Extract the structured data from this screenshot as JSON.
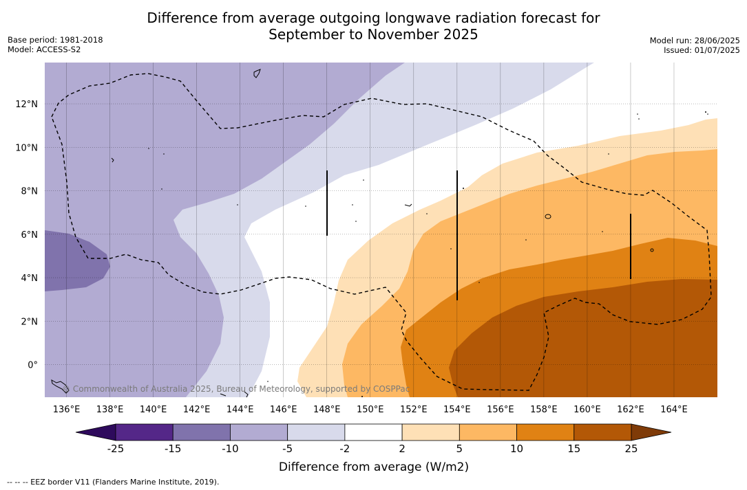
{
  "title_line1": "Difference from average outgoing longwave radiation forecast for",
  "title_line2": "September to November 2025",
  "base_period": "Base period: 1981-2018",
  "model": "Model: ACCESS-S2",
  "model_run": "Model run: 28/06/2025",
  "issued": "Issued: 01/07/2025",
  "copyright": "© Commonwealth of Australia 2025, Bureau of Meteorology, supported by COSPPac",
  "footnote": "--  --  -- EEZ border V11 (Flanders Marine Institute, 2019).",
  "map": {
    "lon_range": [
      135,
      166
    ],
    "lat_range": [
      -1.5,
      13.9
    ],
    "lon_labels": [
      "136°E",
      "138°E",
      "140°E",
      "142°E",
      "144°E",
      "146°E",
      "148°E",
      "150°E",
      "152°E",
      "154°E",
      "156°E",
      "158°E",
      "160°E",
      "162°E",
      "164°E"
    ],
    "lat_labels": [
      "0°",
      "2°N",
      "4°N",
      "6°N",
      "8°N",
      "10°N",
      "12°N"
    ]
  },
  "colorbar": {
    "title": "Difference from average (W/m2)",
    "labels": [
      "-25",
      "-15",
      "-10",
      "-5",
      "-2",
      "2",
      "5",
      "10",
      "15",
      "25"
    ],
    "colors": [
      "#2e0a5c",
      "#542788",
      "#8073ac",
      "#b2abd2",
      "#d8daeb",
      "#ffffff",
      "#fee0b6",
      "#fdb863",
      "#e08214",
      "#b35806",
      "#7f3b08"
    ]
  }
}
